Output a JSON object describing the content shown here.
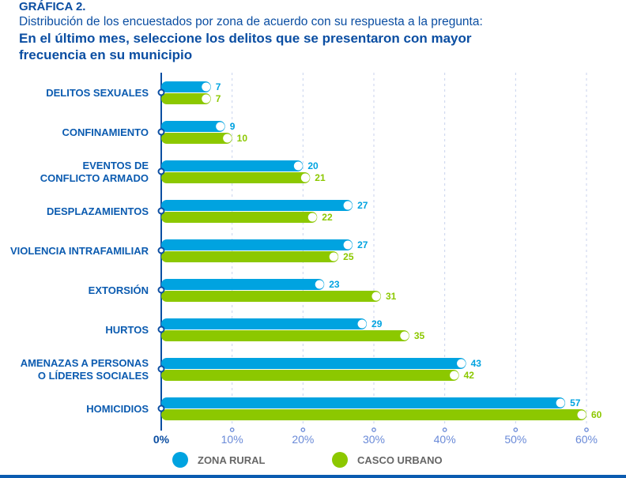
{
  "title": "GRÁFICA 2.",
  "subtitle": "Distribución de los encuestados por zona de acuerdo con su respuesta a la pregunta:",
  "question": "En el último mes, seleccione los delitos que se presentaron con mayor frecuencia en su municipio",
  "chart_data": {
    "type": "bar",
    "orientation": "horizontal",
    "categories": [
      [
        "DELITOS SEXUALES"
      ],
      [
        "CONFINAMIENTO"
      ],
      [
        "EVENTOS DE",
        "CONFLICTO ARMADO"
      ],
      [
        "DESPLAZAMIENTOS"
      ],
      [
        "VIOLENCIA INTRAFAMILIAR"
      ],
      [
        "EXTORSIÓN"
      ],
      [
        "HURTOS"
      ],
      [
        "AMENAZAS A PERSONAS",
        "O LÍDERES SOCIALES"
      ],
      [
        "HOMICIDIOS"
      ]
    ],
    "series": [
      {
        "name": "ZONA RURAL",
        "color": "#00a3e0",
        "values": [
          7,
          9,
          20,
          27,
          27,
          23,
          29,
          43,
          57
        ]
      },
      {
        "name": "CASCO URBANO",
        "color": "#8cc800",
        "values": [
          7,
          10,
          21,
          22,
          25,
          31,
          35,
          42,
          60
        ]
      }
    ],
    "xlim": [
      0,
      60
    ],
    "xticks": [
      "0%",
      "10%",
      "20%",
      "30%",
      "40%",
      "50%",
      "60%"
    ],
    "grid": true,
    "legend": "bottom"
  }
}
